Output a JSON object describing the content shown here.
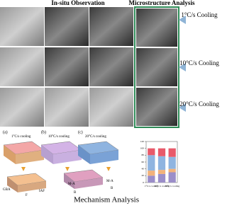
{
  "header": {
    "left": "In-situ Observation",
    "right": "Microstructure Analysis"
  },
  "rows": [
    {
      "label": "1°C/s Cooling"
    },
    {
      "label": "10°C/s Cooling"
    },
    {
      "label": "20°C/s Cooling"
    }
  ],
  "mechanism": {
    "title": "Mechanism Analysis",
    "panels": [
      {
        "label": "(a)",
        "caption": "1°C/s cooling"
      },
      {
        "label": "(b)",
        "caption": "10°C/s cooling"
      },
      {
        "label": "(c)",
        "caption": "20°C/s cooling"
      }
    ],
    "annotations": [
      "GBA",
      "F",
      "IAF",
      "M-A",
      "B",
      "M-A",
      "B"
    ]
  },
  "chart_data": {
    "type": "bar",
    "stacked": true,
    "categories": [
      "1°C/s cooling",
      "10°C/s cooling",
      "20°C/s cooling"
    ],
    "series": [
      {
        "color": "#9b8ec9",
        "values": [
          20,
          25,
          30
        ]
      },
      {
        "color": "#f2b27a",
        "values": [
          15,
          12,
          10
        ]
      },
      {
        "color": "#8fb4e0",
        "values": [
          45,
          40,
          35
        ]
      },
      {
        "color": "#e85a6a",
        "values": [
          20,
          23,
          25
        ]
      }
    ],
    "ylim": [
      0,
      120
    ],
    "yticks": [
      0,
      20,
      40,
      60,
      80,
      100,
      120
    ]
  }
}
